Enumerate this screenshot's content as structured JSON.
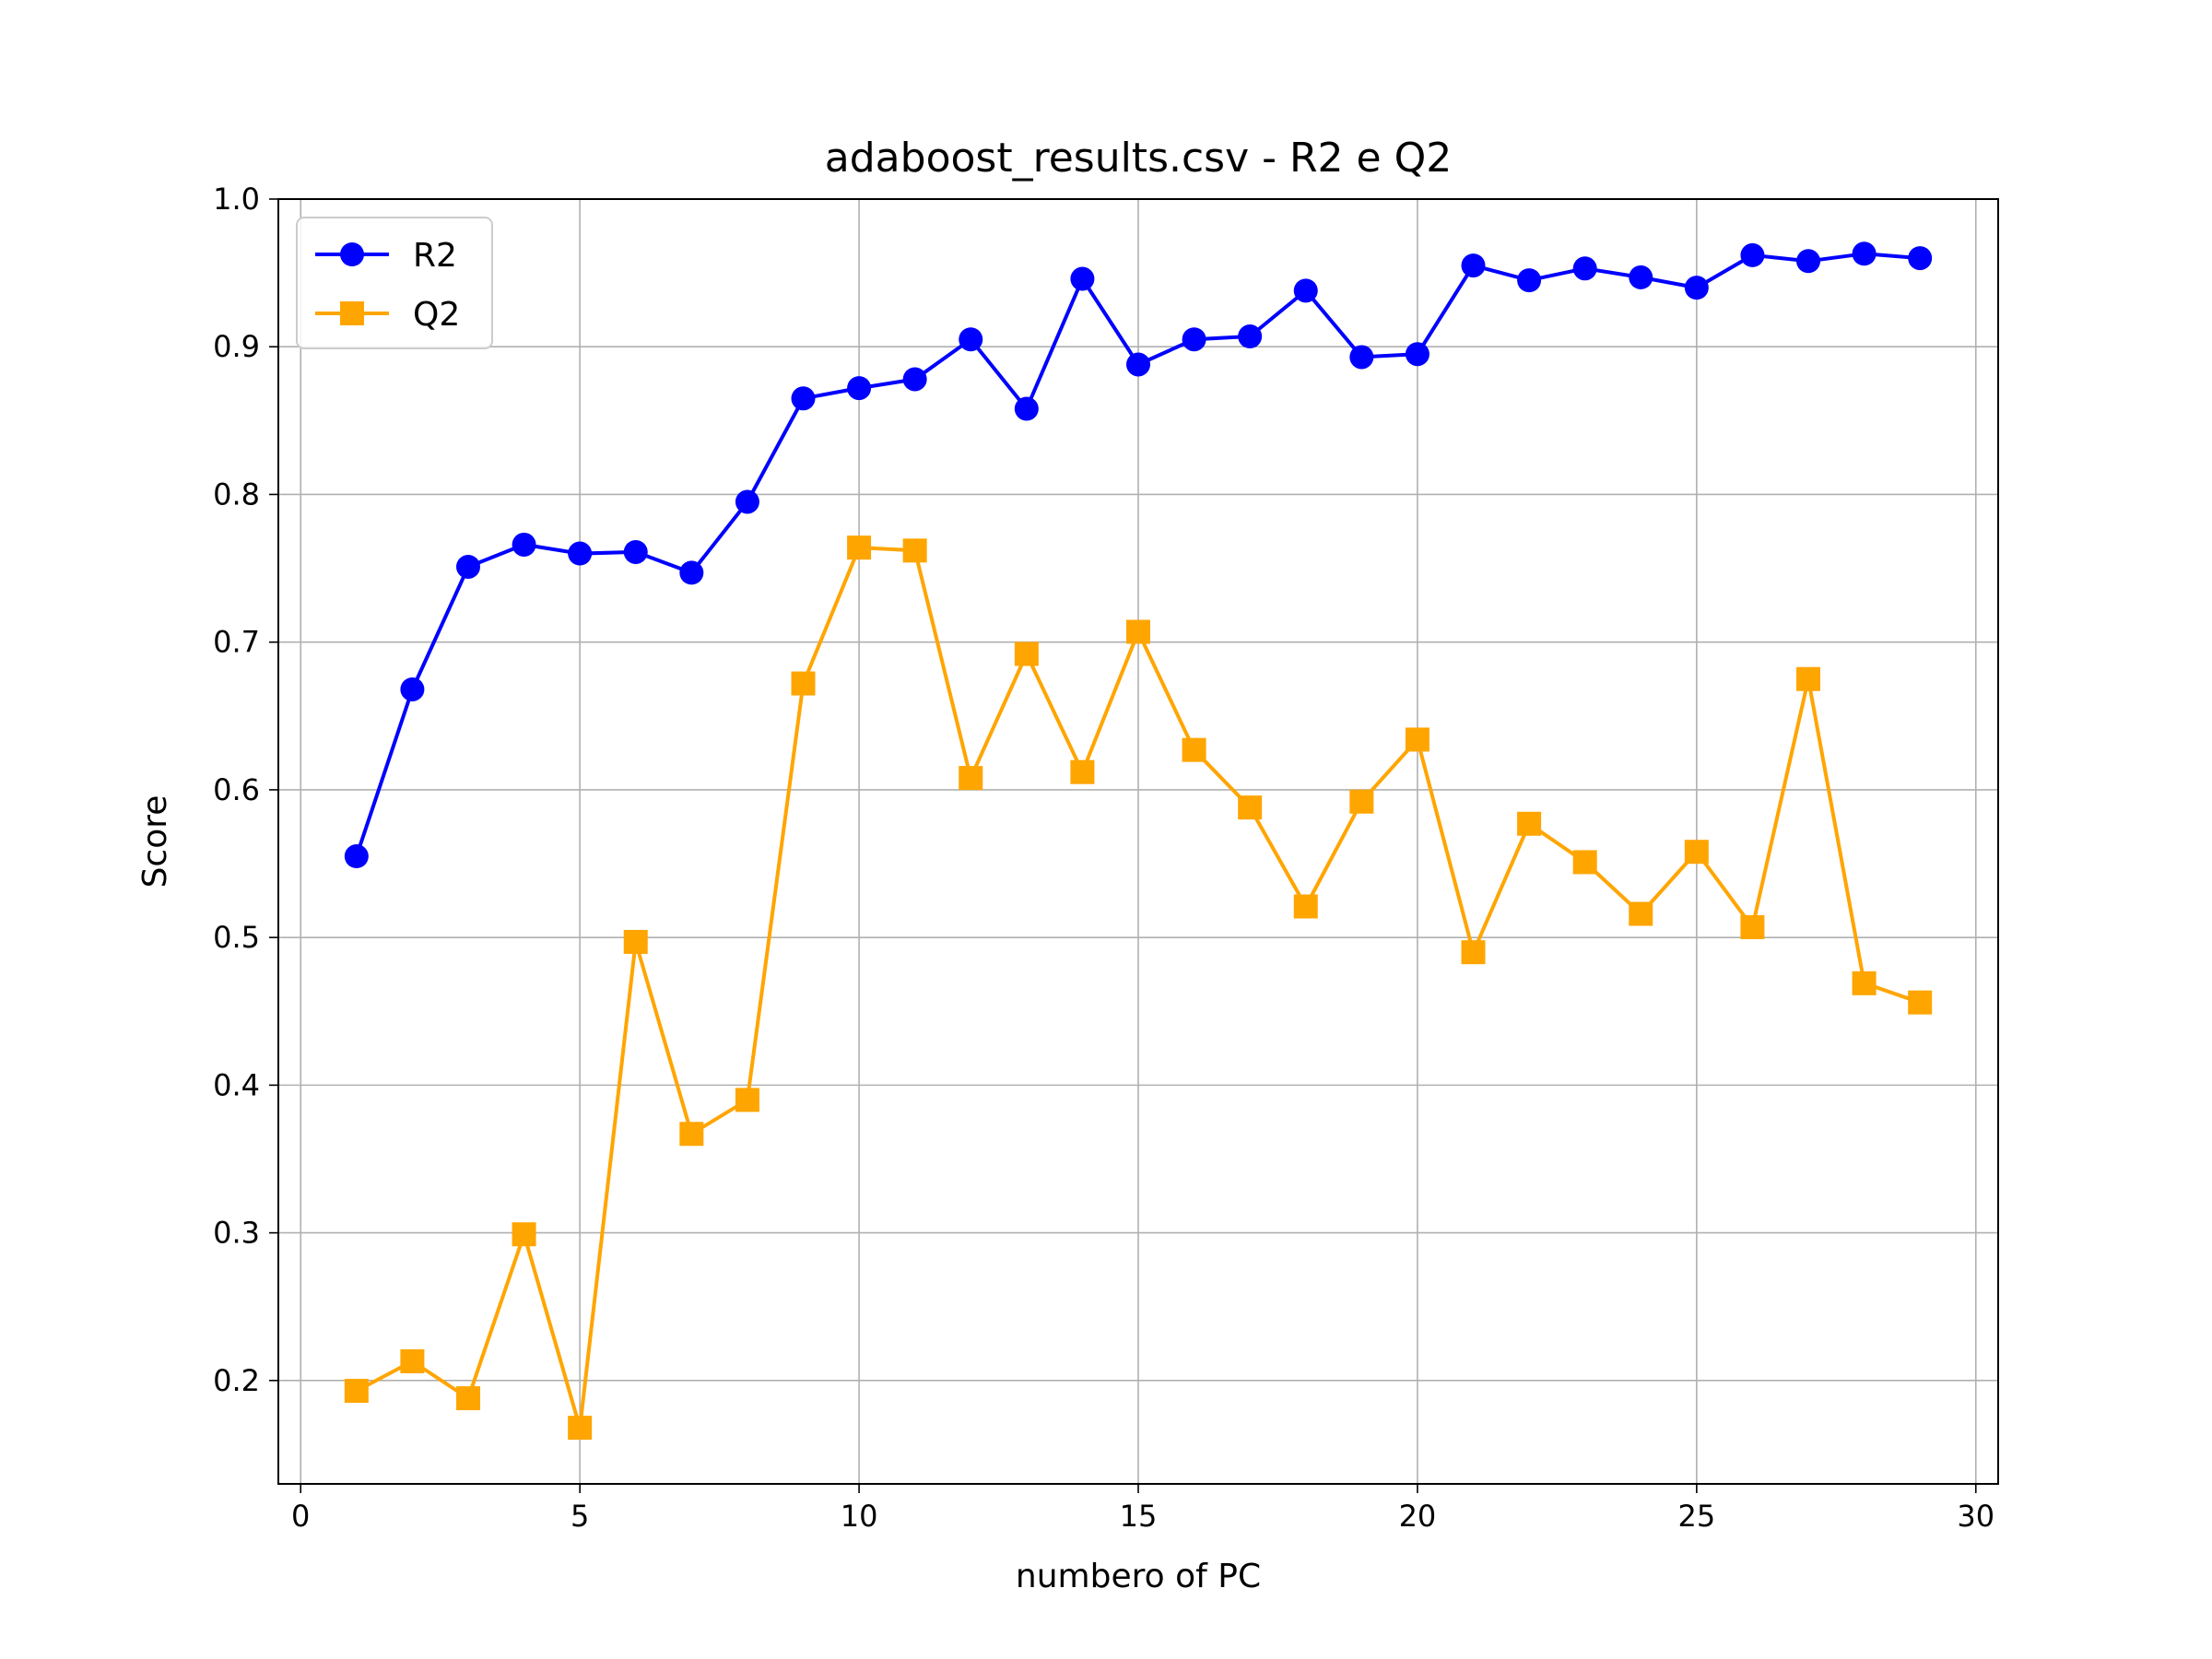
{
  "chart_data": {
    "type": "line",
    "title": "adaboost_results.csv - R2 e Q2",
    "xlabel": "numbero of PC",
    "ylabel": "Score",
    "xlim": [
      -0.4,
      30.4
    ],
    "ylim": [
      0.13,
      1.0
    ],
    "xticks": [
      0,
      5,
      10,
      15,
      20,
      25,
      30
    ],
    "yticks": [
      0.2,
      0.3,
      0.4,
      0.5,
      0.6,
      0.7,
      0.8,
      0.9,
      1.0
    ],
    "xtick_labels": [
      "0",
      "5",
      "10",
      "15",
      "20",
      "25",
      "30"
    ],
    "ytick_labels": [
      "0.2",
      "0.3",
      "0.4",
      "0.5",
      "0.6",
      "0.7",
      "0.8",
      "0.9",
      "1.0"
    ],
    "grid": true,
    "legend_position": "top-left",
    "x": [
      1,
      2,
      3,
      4,
      5,
      6,
      7,
      8,
      9,
      10,
      11,
      12,
      13,
      14,
      15,
      16,
      17,
      18,
      19,
      20,
      21,
      22,
      23,
      24,
      25,
      26,
      27,
      28,
      29
    ],
    "series": [
      {
        "name": "R2",
        "color": "#0000ff",
        "marker": "circle",
        "values": [
          0.555,
          0.668,
          0.751,
          0.766,
          0.76,
          0.761,
          0.747,
          0.795,
          0.865,
          0.872,
          0.878,
          0.905,
          0.858,
          0.946,
          0.888,
          0.905,
          0.907,
          0.938,
          0.893,
          0.895,
          0.955,
          0.945,
          0.953,
          0.947,
          0.94,
          0.962,
          0.958,
          0.963,
          0.96
        ]
      },
      {
        "name": "Q2",
        "color": "#ffa500",
        "marker": "square",
        "values": [
          0.193,
          0.213,
          0.188,
          0.299,
          0.168,
          0.497,
          0.367,
          0.39,
          0.672,
          0.764,
          0.762,
          0.608,
          0.692,
          0.612,
          0.707,
          0.627,
          0.588,
          0.521,
          0.592,
          0.634,
          0.49,
          0.577,
          0.551,
          0.516,
          0.558,
          0.507,
          0.675,
          0.469,
          0.456
        ]
      }
    ]
  }
}
